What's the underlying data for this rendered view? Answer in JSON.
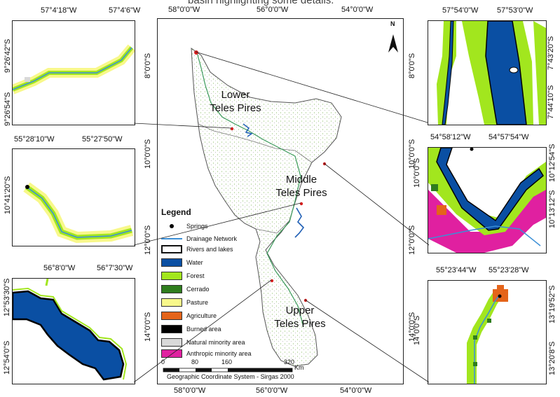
{
  "header_partial": "basin highlighting some details.",
  "main_map": {
    "top_ticks": [
      "58°0'0\"W",
      "56°0'0\"W",
      "54°0'0\"W"
    ],
    "bottom_ticks": [
      "58°0'0\"W",
      "56°0'0\"W",
      "54°0'0\"W"
    ],
    "left_ticks": [
      "8°0'0\"S",
      "10°0'0\"S",
      "12°0'0\"S",
      "14°0'0\"S"
    ],
    "right_ticks": [
      "8°0'0\"S",
      "10°0'0\"S",
      "12°0'0\"S",
      "14°0'0\"S"
    ],
    "north_label": "N",
    "regions": {
      "lower": [
        "Lower",
        "Teles Pires"
      ],
      "middle": [
        "Middle",
        "Teles Pires"
      ],
      "upper": [
        "Upper",
        "Teles Pires"
      ]
    },
    "scale": {
      "ticks": [
        "0",
        "80",
        "160",
        "320"
      ],
      "unit": "Km"
    },
    "crs": "Geographic Coordinate System - Sirgas 2000"
  },
  "legend": {
    "title": "Legend",
    "items": [
      {
        "label": "Springs",
        "kind": "dot",
        "color": "#000000"
      },
      {
        "label": "Drainage Network",
        "kind": "line",
        "color": "#3b8fd6"
      },
      {
        "label": "Rivers and lakes",
        "kind": "box",
        "color": "#ffffff"
      },
      {
        "label": "Water",
        "kind": "box",
        "color": "#0a4fa3"
      },
      {
        "label": "Forest",
        "kind": "box",
        "color": "#a2e61e"
      },
      {
        "label": "Cerrado",
        "kind": "box",
        "color": "#2f7d1e"
      },
      {
        "label": "Pasture",
        "kind": "box",
        "color": "#f8f88a"
      },
      {
        "label": "Agriculture",
        "kind": "box",
        "color": "#e4641a"
      },
      {
        "label": "Burned area",
        "kind": "box",
        "color": "#000000"
      },
      {
        "label": "Natural minority area",
        "kind": "box",
        "color": "#d9d9d9"
      },
      {
        "label": "Anthropic minority area",
        "kind": "box",
        "color": "#e020a0"
      }
    ]
  },
  "insets": {
    "top_left": {
      "top": [
        "57°4'18\"W",
        "57°4'6\"W"
      ],
      "left": [
        "9°26'42\"S",
        "9°26'54\"S"
      ]
    },
    "mid_left": {
      "top": [
        "55°28'10\"W",
        "55°27'50\"W"
      ],
      "left": [
        "10°41'20\"S"
      ]
    },
    "bottom_left": {
      "top": [
        "56°8'0\"W",
        "56°7'30\"W"
      ],
      "left": [
        "12°53'30\"S",
        "12°54'0\"S"
      ]
    },
    "top_right": {
      "top": [
        "57°54'0\"W",
        "57°53'0\"W"
      ],
      "right": [
        "7°43'20\"S",
        "7°44'10\"S"
      ]
    },
    "mid_right": {
      "top": [
        "54°58'12\"W",
        "54°57'54\"W"
      ],
      "right": [
        "10°12'54\"S",
        "10°13'12\"S"
      ]
    },
    "bottom_right": {
      "top": [
        "55°23'44\"W",
        "55°23'28\"W"
      ],
      "right": [
        "13°19'52\"S",
        "13°20'8\"S"
      ]
    }
  }
}
